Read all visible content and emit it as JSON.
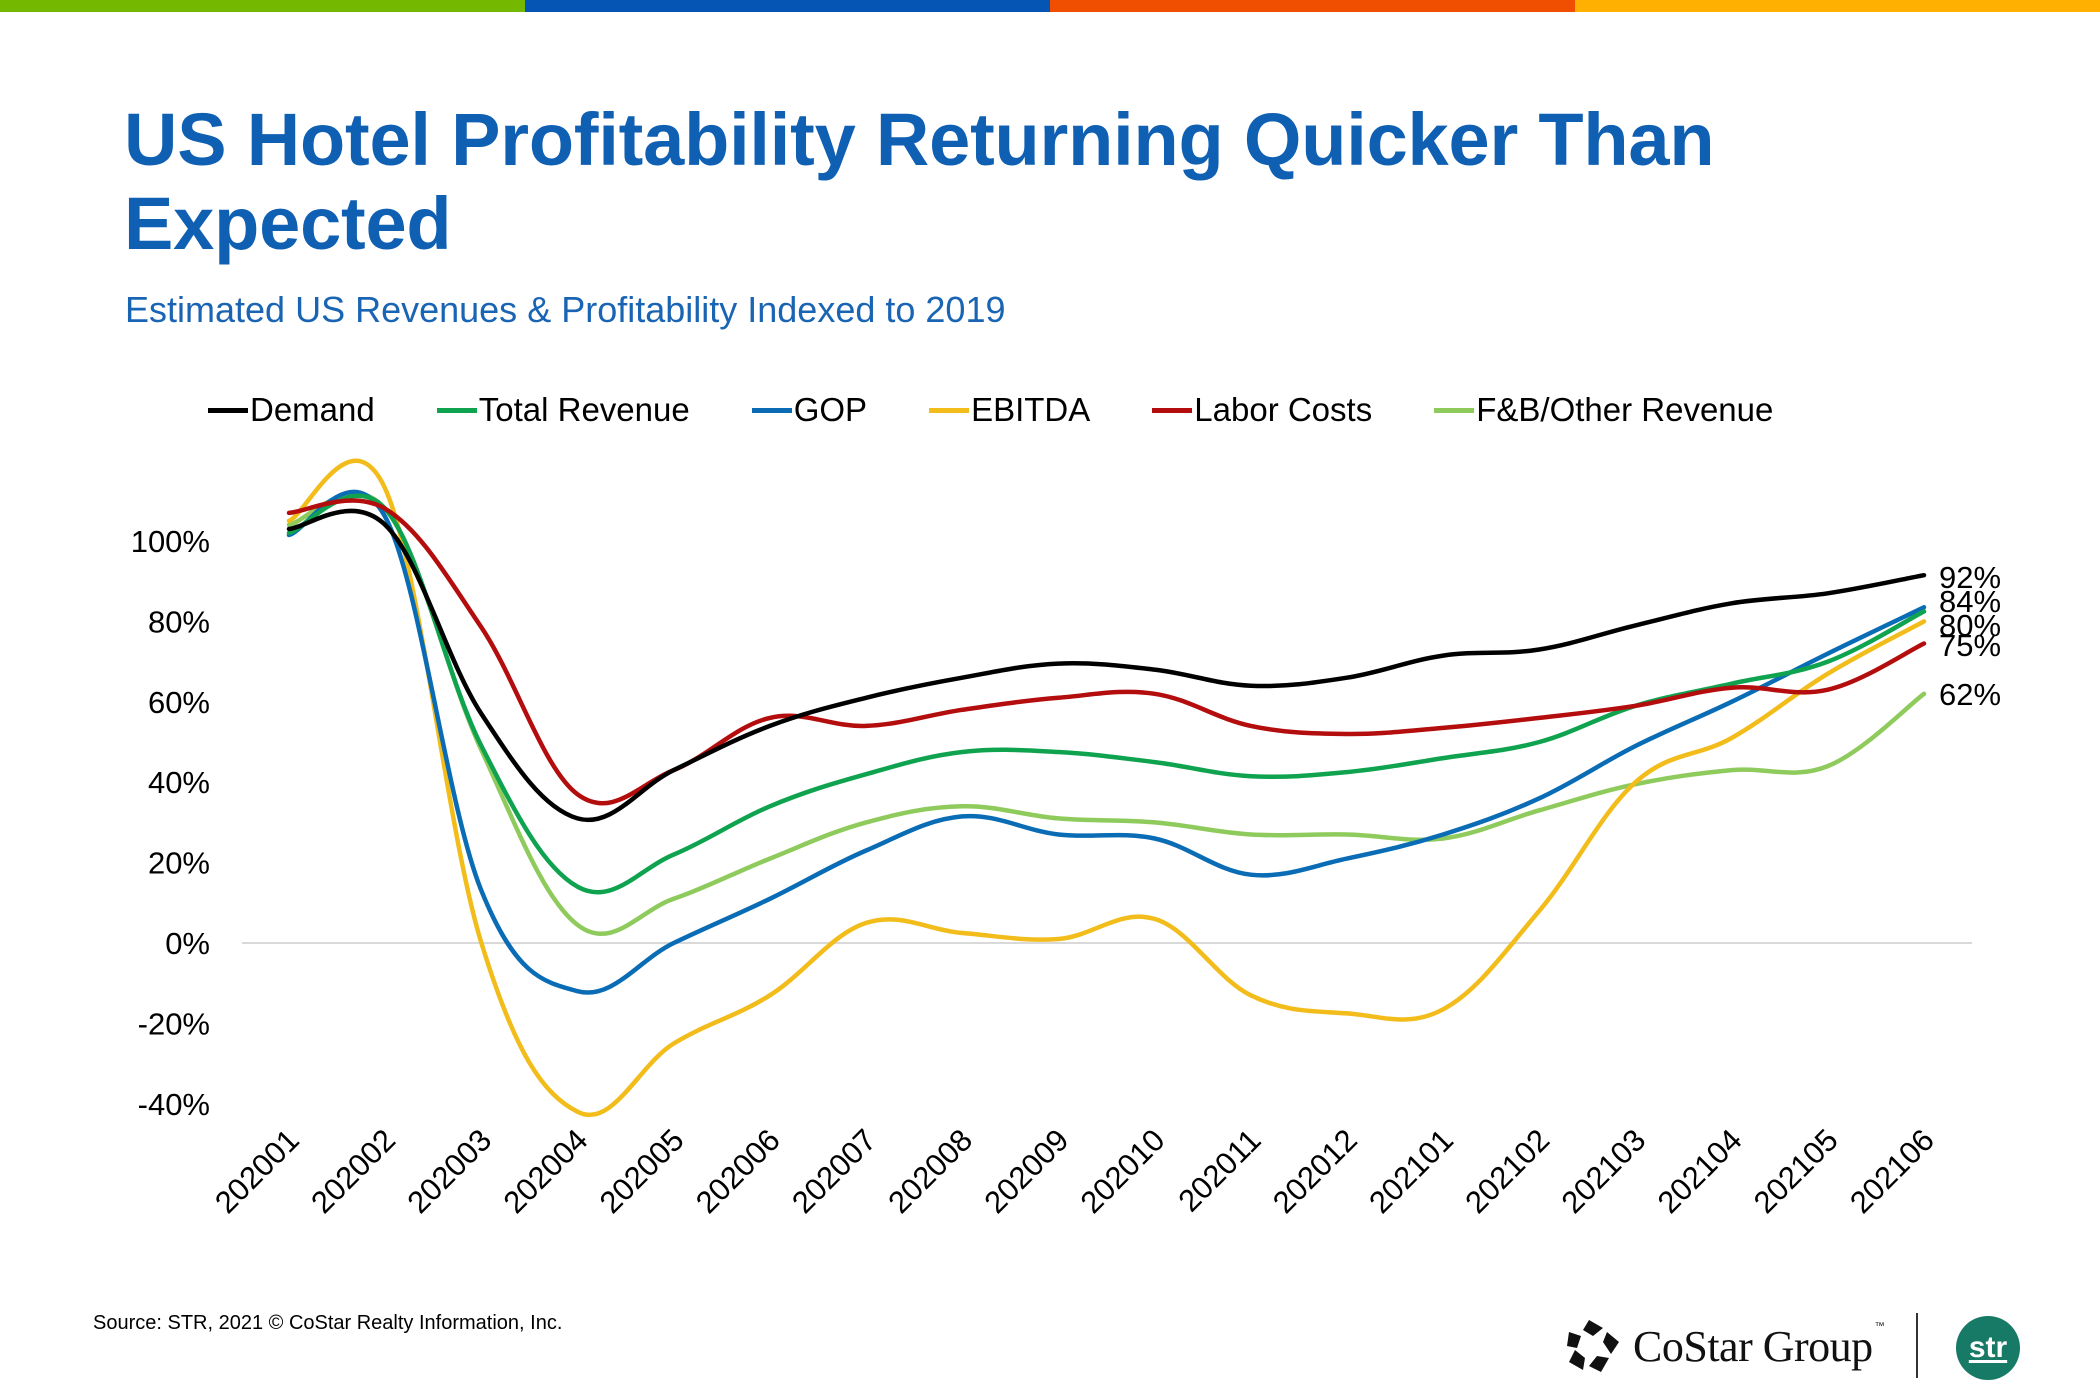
{
  "header": {
    "stripe_colors": [
      "#74B800",
      "#0455B4",
      "#F04E00",
      "#FFB000"
    ],
    "title_line1": "US Hotel Profitability Returning Quicker Than",
    "title_line2": "Expected",
    "subtitle": "Estimated US Revenues & Profitability Indexed to 2019"
  },
  "chart_data": {
    "type": "line",
    "title": "US Hotel Profitability Returning Quicker Than Expected",
    "subtitle": "Estimated US Revenues & Profitability Indexed to 2019",
    "xlabel": "",
    "ylabel": "",
    "ylim": [
      -40,
      100
    ],
    "yticks": [
      100,
      80,
      60,
      40,
      20,
      0,
      -20,
      -40
    ],
    "ytick_labels": [
      "100%",
      "80%",
      "60%",
      "40%",
      "20%",
      "0%",
      "-20%",
      "-40%"
    ],
    "grid": "zero line only",
    "legend_position": "top",
    "categories": [
      "202001",
      "202002",
      "202003",
      "202004",
      "202005",
      "202006",
      "202007",
      "202008",
      "202009",
      "202010",
      "202011",
      "202012",
      "202101",
      "202102",
      "202103",
      "202104",
      "202105",
      "202106"
    ],
    "series": [
      {
        "name": "Demand",
        "color": "#000000",
        "end_label": "92%",
        "values": [
          103,
          104,
          57,
          31,
          43,
          54,
          61,
          66,
          69.5,
          68,
          64,
          66,
          71.5,
          73,
          79,
          84.5,
          87,
          91.5
        ]
      },
      {
        "name": "Total Revenue",
        "color": "#0FA350",
        "end_label": "",
        "values": [
          102,
          108,
          49,
          14,
          22,
          34,
          42,
          47.5,
          47.5,
          45,
          41.5,
          42.5,
          46,
          50,
          59,
          64.5,
          70,
          82.5
        ]
      },
      {
        "name": "GOP",
        "color": "#0A6CB5",
        "end_label": "84%",
        "values": [
          101.5,
          106,
          13,
          -12,
          0,
          11,
          23,
          31.5,
          27,
          26,
          17,
          21,
          27,
          36,
          49,
          60,
          72,
          83.5
        ]
      },
      {
        "name": "EBITDA",
        "color": "#F2BC1A",
        "end_label": "80%",
        "values": [
          105,
          113,
          0,
          -42,
          -25,
          -13,
          5,
          2.5,
          1,
          6,
          -13,
          -17.5,
          -16.5,
          8,
          40,
          51,
          67,
          80
        ]
      },
      {
        "name": "Labor Costs",
        "color": "#B30D0D",
        "end_label": "75%",
        "values": [
          107,
          108,
          78.5,
          37,
          43,
          56,
          54,
          58,
          61,
          62,
          54,
          52,
          53.5,
          56,
          59,
          63.5,
          63,
          74.5
        ]
      },
      {
        "name": "F&B/Other Revenue",
        "color": "#8FCB5C",
        "end_label": "62%",
        "values": [
          104,
          108,
          48,
          4.5,
          11,
          21,
          30,
          34,
          31,
          30,
          27,
          27,
          26,
          33,
          39.5,
          43,
          44,
          62
        ]
      }
    ]
  },
  "footer": {
    "source": "Source: STR, 2021 © CoStar Realty Information, Inc.",
    "costar_logo_text": "CoStar Group",
    "costar_tm": "™",
    "str_logo_text": "str"
  }
}
